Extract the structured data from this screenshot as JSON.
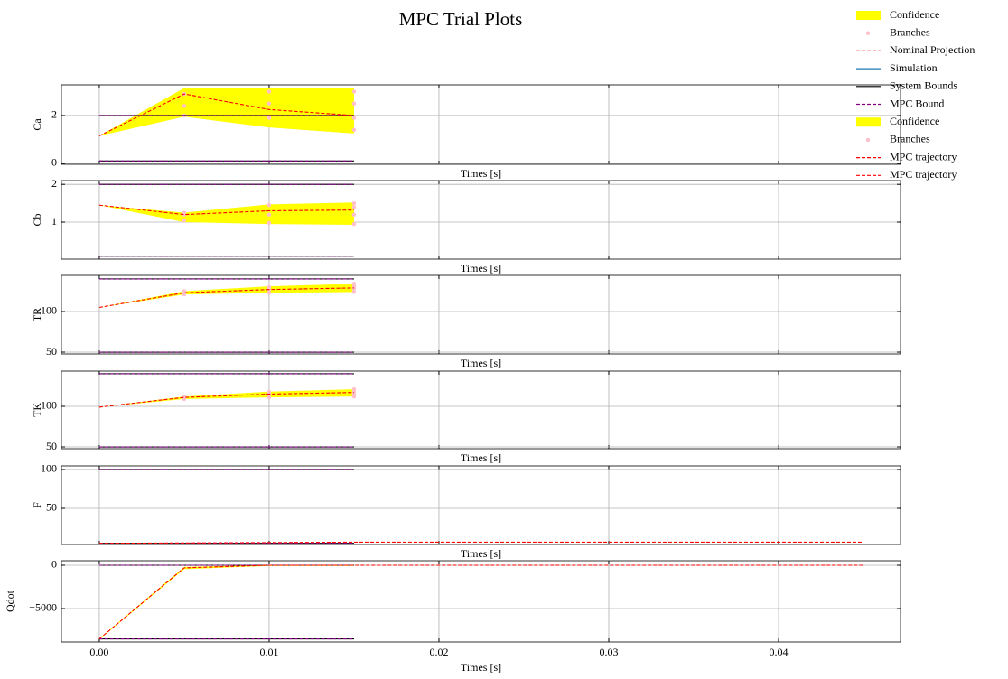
{
  "title": "MPC Trial Plots",
  "legend": [
    {
      "name": "Confidence",
      "color": "#ffff00",
      "style": "patch"
    },
    {
      "name": "Branches",
      "color": "#ffc0cb",
      "style": "dot"
    },
    {
      "name": "Nominal Projection",
      "color": "#ff0000",
      "style": "dashed"
    },
    {
      "name": "Simulation",
      "color": "#1f77b4",
      "style": "solid"
    },
    {
      "name": "System Bounds",
      "color": "#000000",
      "style": "solid"
    },
    {
      "name": "MPC Bound",
      "color": "#800080",
      "style": "dashed"
    },
    {
      "name": "Confidence",
      "color": "#ffff00",
      "style": "patch"
    },
    {
      "name": "Branches",
      "color": "#ffc0cb",
      "style": "dot"
    },
    {
      "name": "MPC trajectory",
      "color": "#ff0000",
      "style": "dashed"
    },
    {
      "name": "MPC trajectory",
      "color": "#ff0000",
      "style": "dashed"
    }
  ],
  "chart_data": [
    {
      "type": "line",
      "ylabel": "Ca",
      "xlabel": "Times [s]",
      "grid": true,
      "xlim": [
        -0.00223,
        0.04718
      ],
      "xticks": [
        0,
        0.01,
        0.02,
        0.03,
        0.04
      ],
      "xticklabels": false,
      "ylim": [
        -0.04,
        3.28
      ],
      "yticks": [
        0,
        2
      ],
      "series": [
        {
          "kind": "band",
          "color": "#ffff00",
          "x": [
            0,
            0.005,
            0.01,
            0.015
          ],
          "lower": [
            1.15,
            1.95,
            1.5,
            1.25
          ],
          "upper": [
            1.15,
            3.15,
            3.15,
            3.15
          ]
        },
        {
          "kind": "points",
          "color": "#ffc0cb",
          "x": [
            0.005,
            0.005,
            0.005,
            0.01,
            0.01,
            0.01,
            0.015,
            0.015,
            0.015,
            0.015
          ],
          "values": [
            2.0,
            2.4,
            2.9,
            1.9,
            2.5,
            3.0,
            1.4,
            1.9,
            2.5,
            3.0
          ]
        },
        {
          "kind": "line",
          "style": "solid",
          "color": "#000000",
          "x": [
            0,
            0.015
          ],
          "values": [
            2,
            2
          ]
        },
        {
          "kind": "line",
          "style": "solid",
          "color": "#000000",
          "x": [
            0,
            0.015
          ],
          "values": [
            0.1,
            0.1
          ]
        },
        {
          "kind": "line",
          "style": "dashed",
          "color": "#800080",
          "x": [
            0,
            0.015
          ],
          "values": [
            2,
            2
          ]
        },
        {
          "kind": "line",
          "style": "dashed",
          "color": "#800080",
          "x": [
            0,
            0.015
          ],
          "values": [
            0.1,
            0.1
          ]
        },
        {
          "kind": "line",
          "style": "dashed",
          "color": "#ff0000",
          "x": [
            0,
            0.005,
            0.01,
            0.015
          ],
          "values": [
            1.15,
            2.9,
            2.25,
            2.0
          ]
        }
      ]
    },
    {
      "type": "line",
      "ylabel": "Cb",
      "xlabel": "Times [s]",
      "grid": true,
      "xlim": [
        -0.00223,
        0.04718
      ],
      "xticks": [
        0,
        0.01,
        0.02,
        0.03,
        0.04
      ],
      "xticklabels": false,
      "ylim": [
        0.02,
        2.1
      ],
      "yticks": [
        1,
        2
      ],
      "series": [
        {
          "kind": "band",
          "color": "#ffff00",
          "x": [
            0,
            0.005,
            0.01,
            0.015
          ],
          "lower": [
            1.45,
            1.0,
            0.95,
            0.93
          ],
          "upper": [
            1.45,
            1.25,
            1.47,
            1.52
          ]
        },
        {
          "kind": "points",
          "color": "#ffc0cb",
          "x": [
            0.005,
            0.005,
            0.005,
            0.01,
            0.01,
            0.01,
            0.015,
            0.015,
            0.015,
            0.015
          ],
          "values": [
            1.05,
            1.2,
            1.25,
            0.98,
            1.2,
            1.45,
            0.95,
            1.2,
            1.4,
            1.5
          ]
        },
        {
          "kind": "line",
          "style": "solid",
          "color": "#000000",
          "x": [
            0,
            0.015
          ],
          "values": [
            2,
            2
          ]
        },
        {
          "kind": "line",
          "style": "solid",
          "color": "#000000",
          "x": [
            0,
            0.015
          ],
          "values": [
            0.1,
            0.1
          ]
        },
        {
          "kind": "line",
          "style": "dashed",
          "color": "#800080",
          "x": [
            0,
            0.015
          ],
          "values": [
            2,
            2
          ]
        },
        {
          "kind": "line",
          "style": "dashed",
          "color": "#800080",
          "x": [
            0,
            0.015
          ],
          "values": [
            0.1,
            0.1
          ]
        },
        {
          "kind": "line",
          "style": "dashed",
          "color": "#ff0000",
          "x": [
            0,
            0.005,
            0.01,
            0.015
          ],
          "values": [
            1.45,
            1.2,
            1.3,
            1.32
          ]
        }
      ]
    },
    {
      "type": "line",
      "ylabel": "TR",
      "xlabel": "Times [s]",
      "grid": true,
      "xlim": [
        -0.00223,
        0.04718
      ],
      "xticks": [
        0,
        0.01,
        0.02,
        0.03,
        0.04
      ],
      "xticklabels": false,
      "ylim": [
        47.8,
        144.4
      ],
      "yticks": [
        50,
        100
      ],
      "series": [
        {
          "kind": "band",
          "color": "#ffff00",
          "x": [
            0,
            0.005,
            0.01,
            0.015
          ],
          "lower": [
            105,
            121,
            123,
            124
          ],
          "upper": [
            105,
            125,
            131,
            134
          ]
        },
        {
          "kind": "points",
          "color": "#ffc0cb",
          "x": [
            0.005,
            0.005,
            0.005,
            0.01,
            0.01,
            0.01,
            0.015,
            0.015,
            0.015,
            0.015
          ],
          "values": [
            121,
            123,
            125,
            123,
            127,
            130,
            124,
            128,
            131,
            134
          ]
        },
        {
          "kind": "line",
          "style": "solid",
          "color": "#000000",
          "x": [
            0,
            0.015
          ],
          "values": [
            140,
            140
          ]
        },
        {
          "kind": "line",
          "style": "solid",
          "color": "#000000",
          "x": [
            0,
            0.015
          ],
          "values": [
            50,
            50
          ]
        },
        {
          "kind": "line",
          "style": "dashed",
          "color": "#800080",
          "x": [
            0,
            0.015
          ],
          "values": [
            140,
            140
          ]
        },
        {
          "kind": "line",
          "style": "dashed",
          "color": "#800080",
          "x": [
            0,
            0.015
          ],
          "values": [
            50,
            50
          ]
        },
        {
          "kind": "line",
          "style": "dashed",
          "color": "#ff0000",
          "x": [
            0,
            0.005,
            0.01,
            0.015
          ],
          "values": [
            105,
            123,
            127,
            129
          ]
        }
      ]
    },
    {
      "type": "line",
      "ylabel": "TK",
      "xlabel": "Times [s]",
      "grid": true,
      "xlim": [
        -0.00223,
        0.04718
      ],
      "xticks": [
        0,
        0.01,
        0.02,
        0.03,
        0.04
      ],
      "xticklabels": false,
      "ylim": [
        47.8,
        143.3
      ],
      "yticks": [
        50,
        100
      ],
      "series": [
        {
          "kind": "band",
          "color": "#ffff00",
          "x": [
            0,
            0.005,
            0.01,
            0.015
          ],
          "lower": [
            99,
            109,
            111,
            112
          ],
          "upper": [
            99,
            112,
            118,
            121
          ]
        },
        {
          "kind": "points",
          "color": "#ffc0cb",
          "x": [
            0.005,
            0.005,
            0.005,
            0.01,
            0.01,
            0.01,
            0.015,
            0.015,
            0.015,
            0.015
          ],
          "values": [
            109,
            111,
            112,
            111,
            115,
            118,
            112,
            115,
            118,
            121
          ]
        },
        {
          "kind": "line",
          "style": "solid",
          "color": "#000000",
          "x": [
            0,
            0.015
          ],
          "values": [
            140,
            140
          ]
        },
        {
          "kind": "line",
          "style": "solid",
          "color": "#000000",
          "x": [
            0,
            0.015
          ],
          "values": [
            50,
            50
          ]
        },
        {
          "kind": "line",
          "style": "dashed",
          "color": "#800080",
          "x": [
            0,
            0.015
          ],
          "values": [
            140,
            140
          ]
        },
        {
          "kind": "line",
          "style": "dashed",
          "color": "#800080",
          "x": [
            0,
            0.015
          ],
          "values": [
            50,
            50
          ]
        },
        {
          "kind": "line",
          "style": "dashed",
          "color": "#ff0000",
          "x": [
            0,
            0.005,
            0.01,
            0.015
          ],
          "values": [
            99,
            111,
            115,
            117
          ]
        }
      ]
    },
    {
      "type": "line",
      "ylabel": "F",
      "xlabel": "Times [s]",
      "grid": true,
      "xlim": [
        -0.00223,
        0.04718
      ],
      "xticks": [
        0,
        0.01,
        0.02,
        0.03,
        0.04
      ],
      "xticklabels": false,
      "ylim": [
        3.5,
        104.6
      ],
      "yticks": [
        50,
        100
      ],
      "series": [
        {
          "kind": "line",
          "style": "solid",
          "color": "#000000",
          "x": [
            0,
            0.015
          ],
          "values": [
            100,
            100
          ]
        },
        {
          "kind": "line",
          "style": "solid",
          "color": "#000000",
          "x": [
            0,
            0.015
          ],
          "values": [
            5,
            5
          ]
        },
        {
          "kind": "line",
          "style": "dashed",
          "color": "#800080",
          "x": [
            0,
            0.015
          ],
          "values": [
            100,
            100
          ]
        },
        {
          "kind": "line",
          "style": "dashed",
          "color": "#800080",
          "x": [
            0,
            0.015
          ],
          "values": [
            5,
            5
          ]
        },
        {
          "kind": "line",
          "style": "dashed",
          "color": "#ff0000",
          "x": [
            0,
            0.005,
            0.01,
            0.015,
            0.02,
            0.025,
            0.03,
            0.035,
            0.04,
            0.045
          ],
          "values": [
            5,
            5.5,
            6,
            6.5,
            6.5,
            6.5,
            6.5,
            6.5,
            6.5,
            6.5
          ]
        }
      ]
    },
    {
      "type": "line",
      "ylabel": "Qdot",
      "xlabel": "Times [s]",
      "grid": true,
      "xlim": [
        -0.00223,
        0.04718
      ],
      "xticks": [
        {
          "value": 0,
          "label": "0.00"
        },
        {
          "value": 0.01,
          "label": "0.01"
        },
        {
          "value": 0.02,
          "label": "0.02"
        },
        {
          "value": 0.03,
          "label": "0.03"
        },
        {
          "value": 0.04,
          "label": "0.04"
        }
      ],
      "xticklabels": true,
      "ylim": [
        -8854,
        520
      ],
      "yticks": [
        {
          "value": -5000,
          "label": "−5000"
        },
        0
      ],
      "series": [
        {
          "kind": "band",
          "color": "#ffff00",
          "x": [
            0,
            0.005,
            0.01,
            0.015
          ],
          "lower": [
            -8550,
            -450,
            -80,
            -80
          ],
          "upper": [
            -8450,
            -200,
            30,
            30
          ]
        },
        {
          "kind": "line",
          "style": "solid",
          "color": "#000000",
          "x": [
            0,
            0.015
          ],
          "values": [
            0,
            0
          ]
        },
        {
          "kind": "line",
          "style": "solid",
          "color": "#000000",
          "x": [
            0,
            0.015
          ],
          "values": [
            -8500,
            -8500
          ]
        },
        {
          "kind": "line",
          "style": "dashed",
          "color": "#800080",
          "x": [
            0,
            0.015
          ],
          "values": [
            0,
            0
          ]
        },
        {
          "kind": "line",
          "style": "dashed",
          "color": "#800080",
          "x": [
            0,
            0.015
          ],
          "values": [
            -8500,
            -8500
          ]
        },
        {
          "kind": "line",
          "style": "dashed",
          "color": "#ff0000",
          "x": [
            0,
            0.005,
            0.01,
            0.015,
            0.02,
            0.025,
            0.03,
            0.035,
            0.04,
            0.045
          ],
          "values": [
            -8500,
            -300,
            0,
            0,
            0,
            0,
            0,
            0,
            0,
            0
          ]
        }
      ]
    }
  ]
}
